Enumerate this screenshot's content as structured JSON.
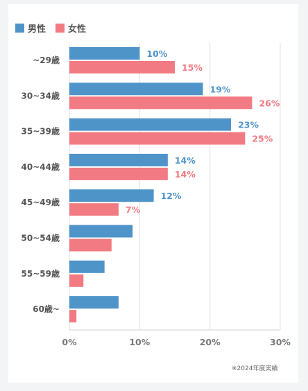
{
  "chart_data": {
    "type": "bar",
    "orientation": "horizontal",
    "categories": [
      "~29歳",
      "30~34歳",
      "35~39歳",
      "40~44歳",
      "45~49歳",
      "50~54歳",
      "55~59歳",
      "60歳~"
    ],
    "series": [
      {
        "name": "男性",
        "color": "#4f94c9",
        "values": [
          10,
          19,
          23,
          14,
          12,
          9,
          5,
          7
        ]
      },
      {
        "name": "女性",
        "color": "#f27a82",
        "values": [
          15,
          26,
          25,
          14,
          7,
          6,
          2,
          1
        ]
      }
    ],
    "data_labels": {
      "男性": [
        "10%",
        "19%",
        "23%",
        "14%",
        "12%",
        null,
        null,
        null
      ],
      "女性": [
        "15%",
        "26%",
        "25%",
        "14%",
        "7%",
        null,
        null,
        null
      ]
    },
    "xlim": [
      0,
      30
    ],
    "x_ticks": [
      0,
      10,
      20,
      30
    ],
    "x_tick_labels": [
      "0%",
      "10%",
      "20%",
      "30%"
    ],
    "grid": true,
    "legend_position": "top-left"
  },
  "footnote": "※2024年度実績"
}
